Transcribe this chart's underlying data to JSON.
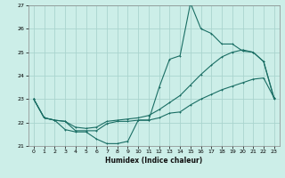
{
  "xlabel": "Humidex (Indice chaleur)",
  "bg_color": "#cceee8",
  "grid_color": "#aad4ce",
  "line_color": "#1a6e64",
  "xlim": [
    -0.5,
    23.5
  ],
  "ylim": [
    21,
    27
  ],
  "yticks": [
    21,
    22,
    23,
    24,
    25,
    26,
    27
  ],
  "xticks": [
    0,
    1,
    2,
    3,
    4,
    5,
    6,
    7,
    8,
    9,
    10,
    11,
    12,
    13,
    14,
    15,
    16,
    17,
    18,
    19,
    20,
    21,
    22,
    23
  ],
  "series1_x": [
    0,
    1,
    2,
    3,
    4,
    5,
    6,
    7,
    8,
    9,
    10,
    11,
    12,
    13,
    14,
    15,
    16,
    17,
    18,
    19,
    20,
    21,
    22,
    23
  ],
  "series1_y": [
    23.0,
    22.2,
    22.1,
    21.7,
    21.6,
    21.6,
    21.3,
    21.1,
    21.1,
    21.2,
    22.1,
    22.1,
    23.5,
    24.7,
    24.85,
    27.1,
    26.0,
    25.8,
    25.35,
    25.35,
    25.05,
    25.0,
    24.6,
    23.0
  ],
  "series2_x": [
    0,
    1,
    2,
    3,
    4,
    5,
    6,
    7,
    8,
    9,
    10,
    11,
    12,
    13,
    14,
    15,
    16,
    17,
    18,
    19,
    20,
    21,
    22,
    23
  ],
  "series2_y": [
    23.0,
    22.2,
    22.1,
    22.05,
    21.65,
    21.65,
    21.65,
    21.95,
    22.05,
    22.05,
    22.1,
    22.1,
    22.2,
    22.4,
    22.45,
    22.75,
    23.0,
    23.2,
    23.4,
    23.55,
    23.7,
    23.85,
    23.9,
    23.05
  ],
  "series3_x": [
    0,
    1,
    2,
    3,
    4,
    5,
    6,
    7,
    8,
    9,
    10,
    11,
    12,
    13,
    14,
    15,
    16,
    17,
    18,
    19,
    20,
    21,
    22,
    23
  ],
  "series3_y": [
    23.0,
    22.2,
    22.1,
    22.05,
    21.8,
    21.75,
    21.8,
    22.05,
    22.1,
    22.15,
    22.2,
    22.3,
    22.55,
    22.85,
    23.15,
    23.6,
    24.05,
    24.45,
    24.8,
    25.0,
    25.1,
    25.0,
    24.6,
    23.05
  ]
}
